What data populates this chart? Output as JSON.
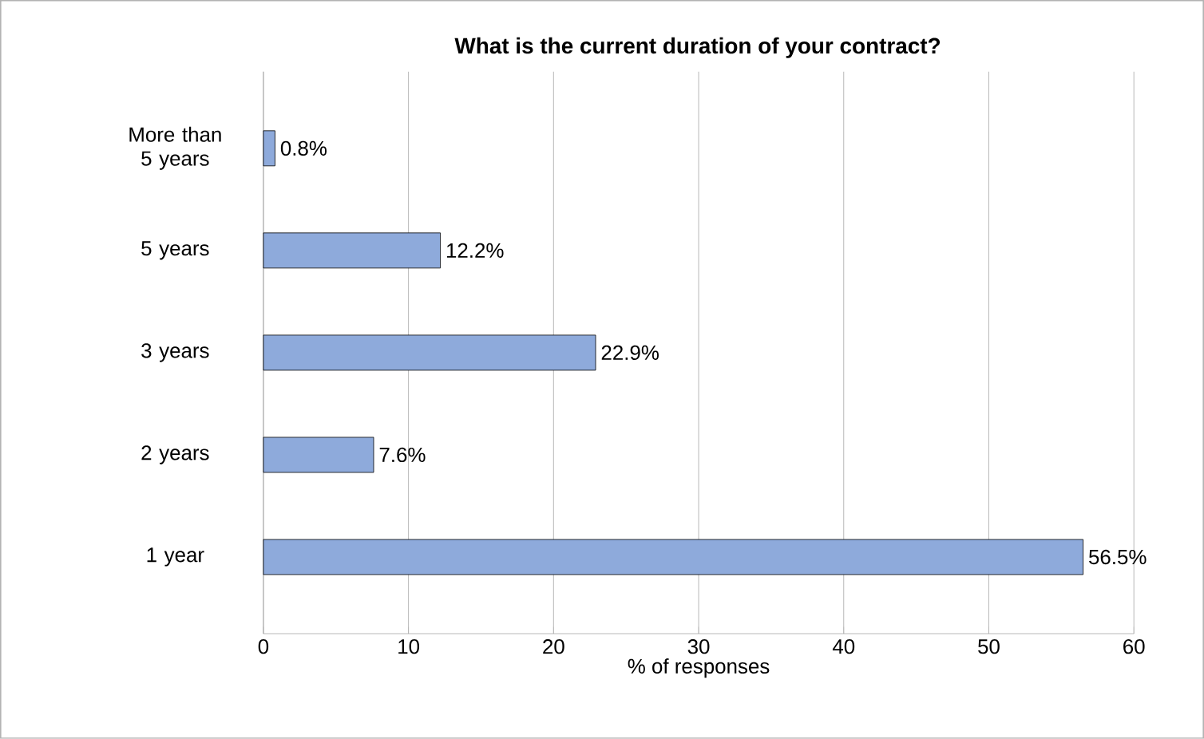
{
  "chart_data": {
    "type": "bar",
    "orientation": "horizontal",
    "title": "What is the current duration of your contract?",
    "xlabel": "% of responses",
    "categories": [
      "More than 5 years",
      "5 years",
      "3 years",
      "2 years",
      "1 year"
    ],
    "values": [
      0.8,
      12.2,
      22.9,
      7.6,
      56.5
    ],
    "value_labels": [
      "0.8%",
      "12.2%",
      "22.9%",
      "7.6%",
      "56.5%"
    ],
    "color": "#8eaadb",
    "xlim": [
      0,
      60
    ],
    "xticks": [
      0,
      10,
      20,
      30,
      40,
      50,
      60
    ],
    "grid": "x"
  }
}
